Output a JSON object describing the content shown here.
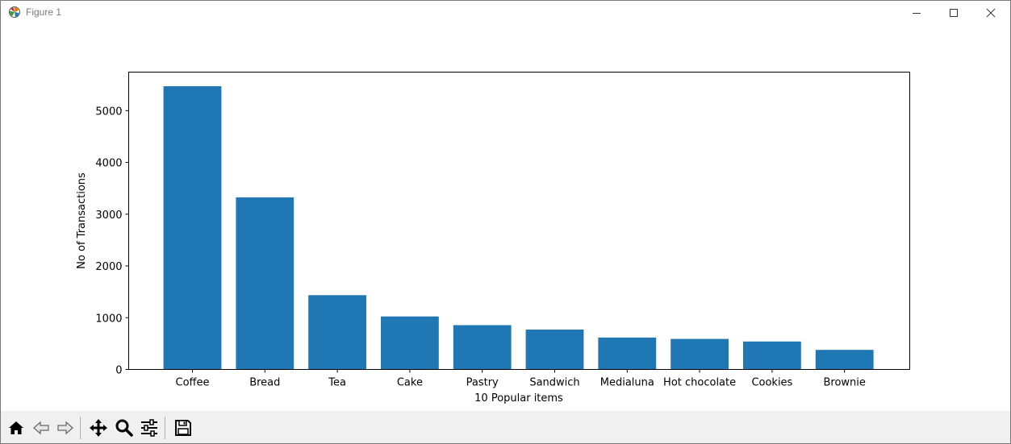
{
  "window": {
    "title": "Figure 1",
    "icons": [
      "matplotlib-logo-icon",
      "minimize-icon",
      "maximize-icon",
      "close-icon"
    ]
  },
  "toolbar": {
    "buttons": [
      {
        "name": "home-icon"
      },
      {
        "name": "back-arrow-icon"
      },
      {
        "name": "forward-arrow-icon"
      },
      {
        "name": "pan-move-icon"
      },
      {
        "name": "zoom-magnifier-icon"
      },
      {
        "name": "configure-subplots-icon"
      },
      {
        "name": "save-floppy-icon"
      }
    ]
  },
  "chart_data": {
    "type": "bar",
    "title": "",
    "xlabel": "10 Popular items",
    "ylabel": "No of Transactions",
    "categories": [
      "Coffee",
      "Bread",
      "Tea",
      "Cake",
      "Pastry",
      "Sandwich",
      "Medialuna",
      "Hot chocolate",
      "Cookies",
      "Brownie"
    ],
    "values": [
      5471,
      3325,
      1435,
      1025,
      856,
      771,
      616,
      590,
      540,
      379
    ],
    "ylim": [
      0,
      5744
    ],
    "yticks": [
      0,
      1000,
      2000,
      3000,
      4000,
      5000
    ],
    "grid": false,
    "legend": "none",
    "bar_color": "#1f77b4"
  }
}
